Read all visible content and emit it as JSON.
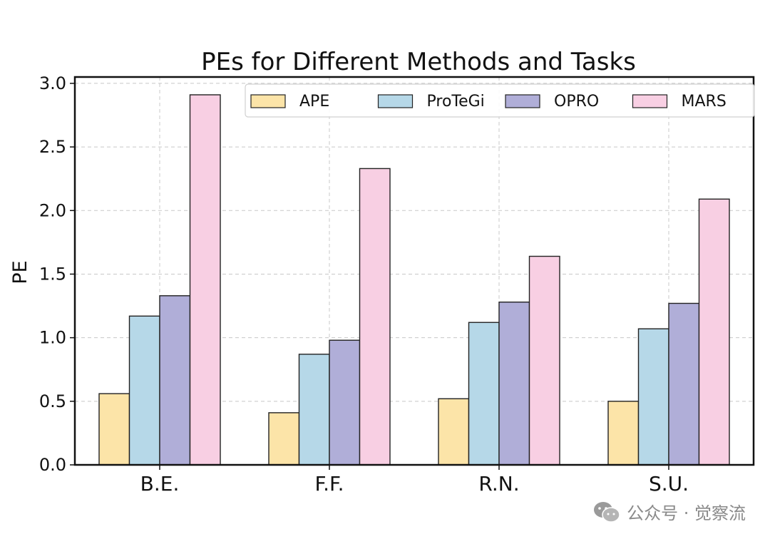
{
  "chart_data": {
    "type": "bar",
    "title": "PEs for Different Methods and Tasks",
    "xlabel": "",
    "ylabel": "PE",
    "categories": [
      "B.E.",
      "F.F.",
      "R.N.",
      "S.U."
    ],
    "yticks": [
      "0.0",
      "0.5",
      "1.0",
      "1.5",
      "2.0",
      "2.5",
      "3.0"
    ],
    "ylim": [
      0,
      3.05
    ],
    "grid": true,
    "legend_position": "top-right",
    "series": [
      {
        "name": "APE",
        "color": "#fce4a8",
        "values": [
          0.56,
          0.41,
          0.52,
          0.5
        ]
      },
      {
        "name": "ProTeGi",
        "color": "#b6d8e8",
        "values": [
          1.17,
          0.87,
          1.12,
          1.07
        ]
      },
      {
        "name": "OPRO",
        "color": "#b0aed8",
        "values": [
          1.33,
          0.98,
          1.28,
          1.27
        ]
      },
      {
        "name": "MARS",
        "color": "#f8cfe3",
        "values": [
          2.91,
          2.33,
          1.64,
          2.09
        ]
      }
    ]
  },
  "watermark": {
    "text": "公众号 · 觉察流",
    "icon": "wechat-icon"
  }
}
